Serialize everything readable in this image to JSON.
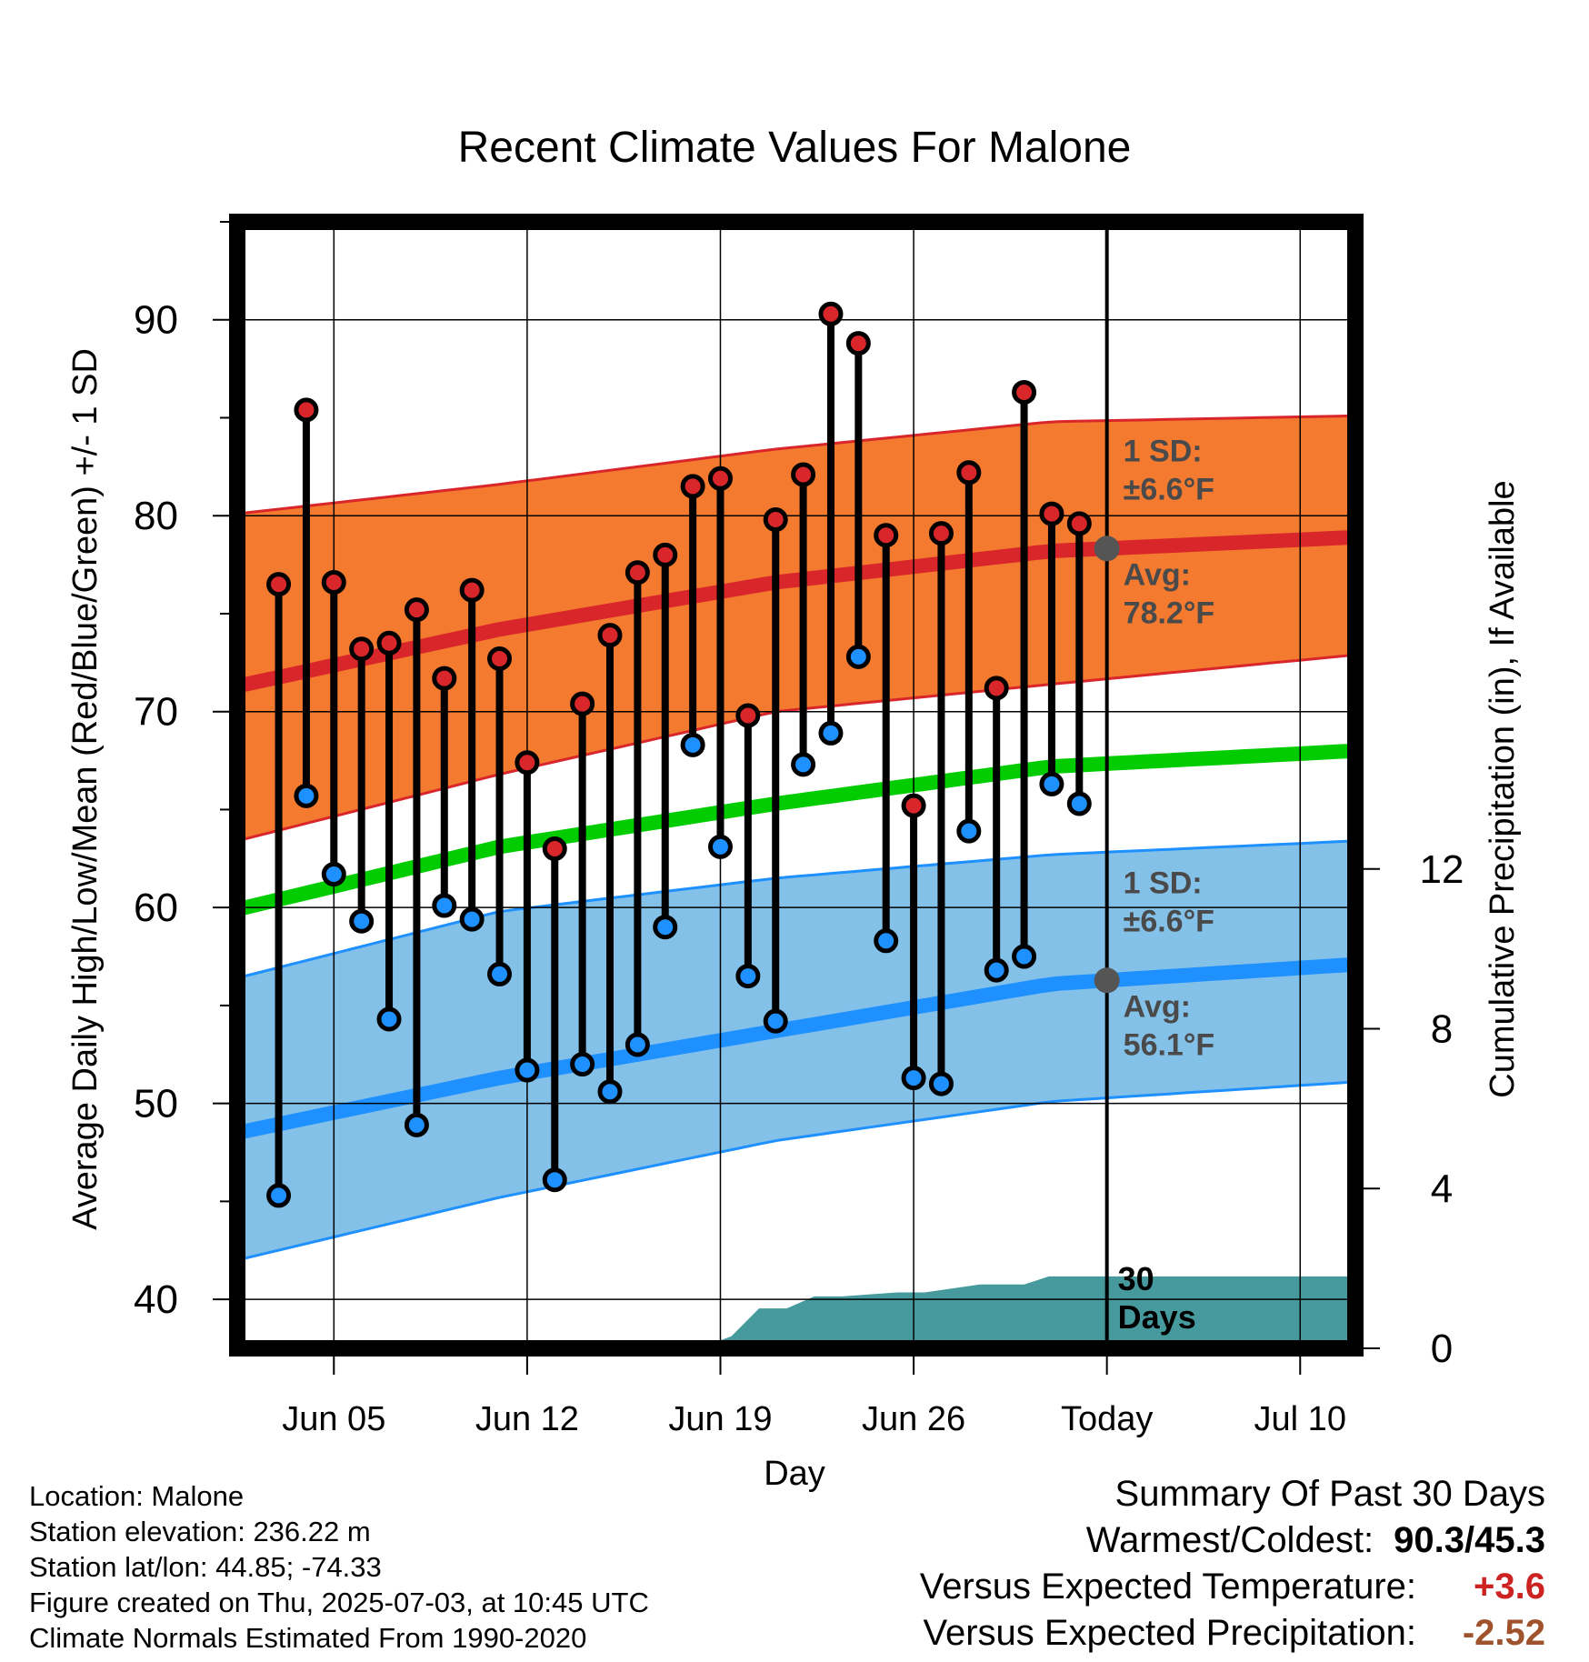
{
  "chart_data": {
    "type": "line",
    "title": "Recent Climate Values For Malone",
    "xlabel": "Day",
    "ylabel_left": "Average Daily High/Low/Mean (Red/Blue/Green) +/- 1 SD",
    "ylabel_right": "Cumulative Precipitation (in), If Available",
    "x_tick_labels": [
      "Jun 05",
      "Jun 12",
      "Jun 19",
      "Jun 26",
      "Today",
      "Jul 10"
    ],
    "x_tick_days": [
      4,
      11,
      18,
      25,
      32,
      39
    ],
    "x_range_days": [
      0.5,
      41
    ],
    "today_day": 32,
    "ylim_left": [
      37.5,
      95
    ],
    "y_ticks_left": [
      40,
      50,
      60,
      70,
      80,
      90
    ],
    "ylim_right": [
      0,
      28.2
    ],
    "y_ticks_right": [
      0,
      4,
      8,
      12
    ],
    "grid": true,
    "observed": {
      "days": [
        2,
        3,
        4,
        5,
        6,
        7,
        8,
        9,
        10,
        11,
        12,
        13,
        14,
        15,
        16,
        17,
        18,
        19,
        20,
        21,
        22,
        23,
        24,
        25,
        26,
        27,
        28,
        29,
        30,
        31
      ],
      "highs": [
        76.5,
        85.4,
        76.6,
        73.2,
        73.5,
        75.2,
        71.7,
        76.2,
        72.7,
        67.4,
        63.0,
        70.4,
        73.9,
        77.1,
        78.0,
        81.5,
        81.9,
        69.8,
        79.8,
        82.1,
        90.3,
        88.8,
        79.0,
        65.2,
        79.1,
        82.2,
        71.2,
        86.3,
        80.1,
        79.6
      ],
      "lows": [
        45.3,
        65.7,
        61.7,
        59.3,
        54.3,
        48.9,
        60.1,
        59.4,
        56.6,
        51.7,
        46.1,
        52.0,
        50.6,
        53.0,
        59.0,
        68.3,
        63.1,
        56.5,
        54.2,
        67.3,
        68.9,
        72.8,
        58.3,
        51.3,
        51.0,
        63.9,
        56.8,
        57.5,
        66.3,
        65.3
      ]
    },
    "normals": {
      "days": [
        0.5,
        10,
        20,
        30,
        41
      ],
      "avg_high": [
        71.3,
        74.2,
        76.6,
        78.2,
        78.9
      ],
      "avg_high_upper": [
        80.1,
        81.6,
        83.4,
        84.8,
        85.1
      ],
      "avg_high_lower": [
        63.4,
        66.8,
        70.0,
        71.4,
        72.9
      ],
      "avg_mean": [
        59.9,
        63.1,
        65.3,
        67.2,
        68.0
      ],
      "avg_low": [
        48.5,
        51.3,
        53.7,
        56.1,
        57.1
      ],
      "avg_low_upper": [
        56.4,
        59.8,
        61.5,
        62.7,
        63.4
      ],
      "avg_low_lower": [
        42.0,
        45.2,
        48.1,
        50.1,
        51.1
      ]
    },
    "precipitation": {
      "days": [
        0.5,
        7.6,
        8.6,
        18.0,
        18.4,
        19.4,
        20.4,
        21.4,
        22.4,
        24.4,
        25.4,
        27.4,
        29.0,
        29.9,
        30.8,
        41
      ],
      "cumulative": [
        0,
        0,
        0.2,
        0.2,
        0.3,
        1.0,
        1.0,
        1.3,
        1.3,
        1.4,
        1.4,
        1.6,
        1.6,
        1.8,
        1.8,
        1.8
      ]
    },
    "colors": {
      "high": "#d9262b",
      "low": "#1e90ff",
      "mean": "#00cc00",
      "high_band": "#f37a2f",
      "low_band": "#83c1e8",
      "precip": "#469a9d",
      "marker_today": "#555555"
    },
    "annotations": {
      "high_sd_line1": "1 SD:",
      "high_sd_line2": "±6.6°F",
      "high_avg_line1": "Avg:",
      "high_avg_line2": "78.2°F",
      "low_sd_line1": "1 SD:",
      "low_sd_line2": "±6.6°F",
      "low_avg_line1": "Avg:",
      "low_avg_line2": "56.1°F",
      "days_line1": "30",
      "days_line2": "Days"
    }
  },
  "footer": {
    "location": "Location: Malone",
    "elevation": "Station elevation: 236.22 m",
    "latlon": "Station lat/lon: 44.85; -74.33",
    "created": "Figure created on Thu, 2025-07-03, at 10:45 UTC",
    "normals": "Climate Normals Estimated From 1990-2020"
  },
  "summary": {
    "title": "Summary Of Past 30 Days",
    "warm_cold_label": "Warmest/Coldest:",
    "warm_cold_value": "90.3/45.3",
    "temp_label": "Versus Expected Temperature:",
    "temp_value": "+3.6",
    "temp_color": "#cc2222",
    "precip_label": "Versus Expected Precipitation:",
    "precip_value": "-2.52",
    "precip_color": "#a0522d"
  }
}
